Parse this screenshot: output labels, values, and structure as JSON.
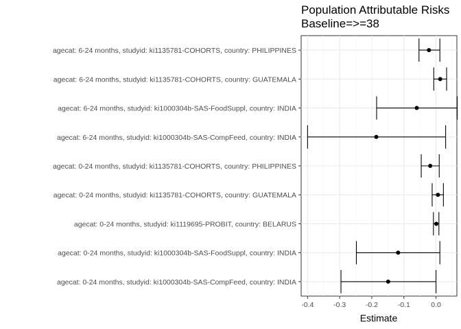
{
  "chart_data": {
    "type": "forest",
    "title": "Population Attributable Risks",
    "subtitle": "Baseline=>=38",
    "xlabel": "Estimate",
    "ylabel": "",
    "xlim": [
      -0.42,
      0.065
    ],
    "xticks": [
      -0.4,
      -0.3,
      -0.2,
      -0.1,
      0.0
    ],
    "tick_labels": [
      "-0.4",
      "-0.3",
      "-0.2",
      "-0.1",
      "0.0"
    ],
    "grid": true,
    "rows": [
      {
        "label": "agecat: 6-24 months, studyid: ki1135781-COHORTS, country: PHILIPPINES",
        "estimate": -0.022,
        "lower": -0.053,
        "upper": 0.012
      },
      {
        "label": "agecat: 6-24 months, studyid: ki1135781-COHORTS, country: GUATEMALA",
        "estimate": 0.013,
        "lower": -0.007,
        "upper": 0.033
      },
      {
        "label": "agecat: 6-24 months, studyid: ki1000304b-SAS-FoodSuppl, country: INDIA",
        "estimate": -0.06,
        "lower": -0.185,
        "upper": 0.066
      },
      {
        "label": "agecat: 6-24 months, studyid: ki1000304b-SAS-CompFeed, country: INDIA",
        "estimate": -0.186,
        "lower": -0.4,
        "upper": 0.03
      },
      {
        "label": "agecat: 0-24 months, studyid: ki1135781-COHORTS, country: PHILIPPINES",
        "estimate": -0.018,
        "lower": -0.046,
        "upper": 0.01
      },
      {
        "label": "agecat: 0-24 months, studyid: ki1135781-COHORTS, country: GUATEMALA",
        "estimate": 0.006,
        "lower": -0.012,
        "upper": 0.023
      },
      {
        "label": "agecat: 0-24 months, studyid: ki1119695-PROBIT, country: BELARUS",
        "estimate": 0.001,
        "lower": -0.008,
        "upper": 0.009
      },
      {
        "label": "agecat: 0-24 months, studyid: ki1000304b-SAS-FoodSuppl, country: INDIA",
        "estimate": -0.118,
        "lower": -0.248,
        "upper": 0.012
      },
      {
        "label": "agecat: 0-24 months, studyid: ki1000304b-SAS-CompFeed, country: INDIA",
        "estimate": -0.149,
        "lower": -0.296,
        "upper": 0.0
      }
    ]
  }
}
